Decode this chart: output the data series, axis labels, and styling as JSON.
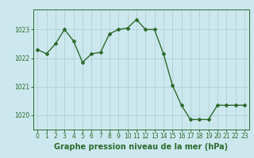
{
  "x": [
    0,
    1,
    2,
    3,
    4,
    5,
    6,
    7,
    8,
    9,
    10,
    11,
    12,
    13,
    14,
    15,
    16,
    17,
    18,
    19,
    20,
    21,
    22,
    23
  ],
  "y": [
    1022.3,
    1022.15,
    1022.5,
    1023.0,
    1022.6,
    1021.85,
    1022.15,
    1022.2,
    1022.85,
    1023.0,
    1023.05,
    1023.35,
    1023.0,
    1023.0,
    1022.15,
    1021.05,
    1020.35,
    1019.85,
    1019.85,
    1019.85,
    1020.35,
    1020.35,
    1020.35,
    1020.35
  ],
  "line_color": "#2d6a2d",
  "marker": "D",
  "marker_size": 2.0,
  "line_width": 1.0,
  "bg_color": "#cce8ee",
  "grid_color": "#aacccc",
  "tick_label_color": "#2d6a2d",
  "xlabel": "Graphe pression niveau de la mer (hPa)",
  "xlabel_color": "#2d6a2d",
  "xlabel_fontsize": 7.0,
  "ylim": [
    1019.5,
    1023.7
  ],
  "yticks": [
    1020,
    1021,
    1022,
    1023
  ],
  "xticks": [
    0,
    1,
    2,
    3,
    4,
    5,
    6,
    7,
    8,
    9,
    10,
    11,
    12,
    13,
    14,
    15,
    16,
    17,
    18,
    19,
    20,
    21,
    22,
    23
  ],
  "tick_fontsize": 5.5,
  "spine_color": "#2d6a2d"
}
